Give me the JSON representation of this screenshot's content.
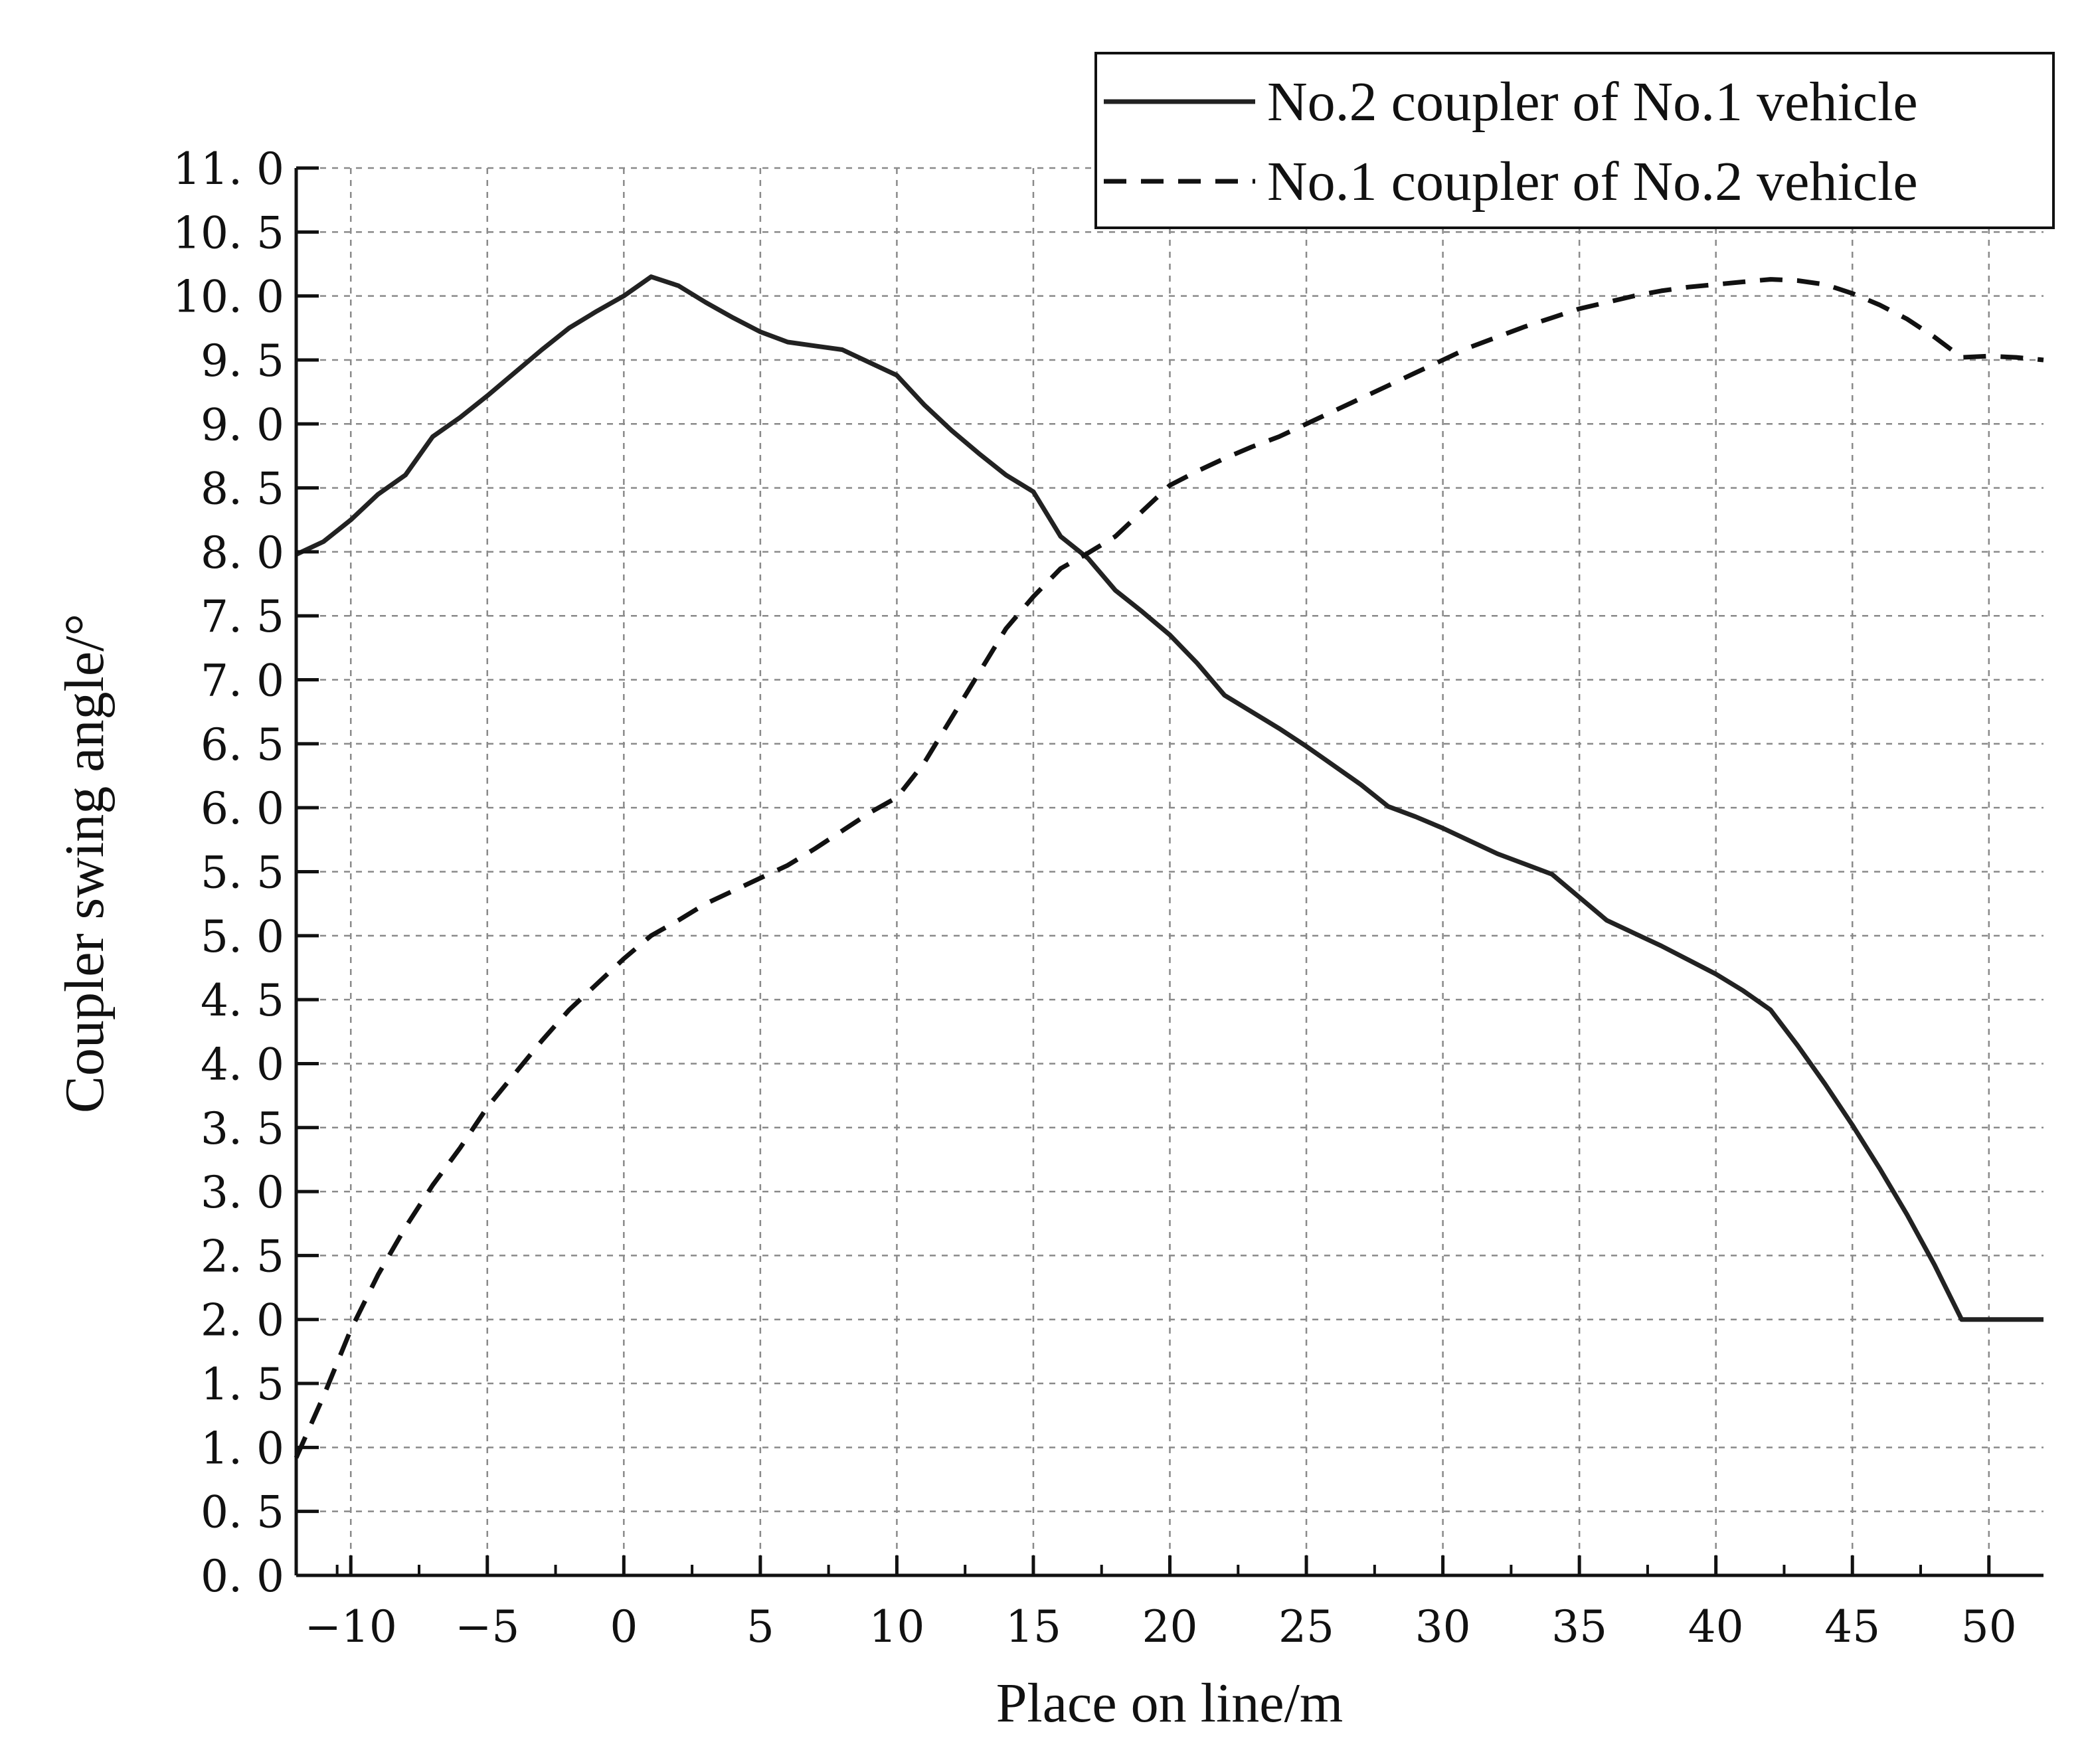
{
  "chart_data": {
    "type": "line",
    "xlabel": "Place on line/m",
    "ylabel": "Coupler swing angle/°",
    "xlim": [
      -12,
      52
    ],
    "ylim": [
      0,
      11
    ],
    "xticks": [
      -10,
      -5,
      0,
      5,
      10,
      15,
      20,
      25,
      30,
      35,
      40,
      45,
      50
    ],
    "xtick_labels": [
      "−10",
      "−5",
      "0",
      "5",
      "10",
      "15",
      "20",
      "25",
      "30",
      "35",
      "40",
      "45",
      "50"
    ],
    "yticks": [
      0,
      0.5,
      1,
      1.5,
      2,
      2.5,
      3,
      3.5,
      4,
      4.5,
      5,
      5.5,
      6,
      6.5,
      7,
      7.5,
      8,
      8.5,
      9,
      9.5,
      10,
      10.5,
      11
    ],
    "ytick_labels": [
      "0. 0",
      "0. 5",
      "1. 0",
      "1. 5",
      "2. 0",
      "2. 5",
      "3. 0",
      "3. 5",
      "4. 0",
      "4. 5",
      "5. 0",
      "5. 5",
      "6. 0",
      "6. 5",
      "7. 0",
      "7. 5",
      "8. 0",
      "8. 5",
      "9. 0",
      "9. 5",
      "10. 0",
      "10. 5",
      "11. 0"
    ],
    "grid": true,
    "legend_position": "top-right",
    "series": [
      {
        "name": "No.2 coupler of No.1 vehicle",
        "style": "solid",
        "color": "#222222",
        "points": [
          [
            -12,
            7.98
          ],
          [
            -11,
            8.08
          ],
          [
            -10,
            8.25
          ],
          [
            -9,
            8.45
          ],
          [
            -8,
            8.6
          ],
          [
            -7,
            8.9
          ],
          [
            -6,
            9.05
          ],
          [
            -5,
            9.22
          ],
          [
            -4,
            9.4
          ],
          [
            -3,
            9.58
          ],
          [
            -2,
            9.75
          ],
          [
            -1,
            9.88
          ],
          [
            0,
            10.0
          ],
          [
            1,
            10.15
          ],
          [
            2,
            10.08
          ],
          [
            3,
            9.95
          ],
          [
            4,
            9.83
          ],
          [
            5,
            9.72
          ],
          [
            6,
            9.64
          ],
          [
            7,
            9.61
          ],
          [
            8,
            9.58
          ],
          [
            9,
            9.48
          ],
          [
            10,
            9.38
          ],
          [
            11,
            9.15
          ],
          [
            12,
            8.95
          ],
          [
            13,
            8.77
          ],
          [
            14,
            8.6
          ],
          [
            15,
            8.47
          ],
          [
            16,
            8.12
          ],
          [
            17,
            7.95
          ],
          [
            18,
            7.7
          ],
          [
            19,
            7.53
          ],
          [
            20,
            7.35
          ],
          [
            21,
            7.13
          ],
          [
            22,
            6.88
          ],
          [
            23,
            6.75
          ],
          [
            24,
            6.62
          ],
          [
            25,
            6.48
          ],
          [
            26,
            6.33
          ],
          [
            27,
            6.18
          ],
          [
            28,
            6.01
          ],
          [
            29,
            5.93
          ],
          [
            30,
            5.84
          ],
          [
            31,
            5.74
          ],
          [
            32,
            5.64
          ],
          [
            33,
            5.56
          ],
          [
            34,
            5.48
          ],
          [
            35,
            5.3
          ],
          [
            36,
            5.12
          ],
          [
            37,
            5.02
          ],
          [
            38,
            4.92
          ],
          [
            39,
            4.81
          ],
          [
            40,
            4.7
          ],
          [
            41,
            4.57
          ],
          [
            42,
            4.42
          ],
          [
            43,
            4.14
          ],
          [
            44,
            3.84
          ],
          [
            45,
            3.52
          ],
          [
            46,
            3.18
          ],
          [
            47,
            2.82
          ],
          [
            48,
            2.43
          ],
          [
            49,
            2.0
          ],
          [
            50,
            2.0
          ],
          [
            51,
            2.0
          ],
          [
            52,
            2.0
          ]
        ]
      },
      {
        "name": "No.1 coupler of No.2 vehicle",
        "style": "dashed",
        "color": "#111111",
        "points": [
          [
            -12,
            0.92
          ],
          [
            -11,
            1.4
          ],
          [
            -10,
            1.92
          ],
          [
            -9,
            2.35
          ],
          [
            -8,
            2.72
          ],
          [
            -7,
            3.05
          ],
          [
            -6,
            3.34
          ],
          [
            -5,
            3.66
          ],
          [
            -4,
            3.92
          ],
          [
            -3,
            4.18
          ],
          [
            -2,
            4.42
          ],
          [
            -1,
            4.62
          ],
          [
            0,
            4.82
          ],
          [
            1,
            5.0
          ],
          [
            2,
            5.12
          ],
          [
            3,
            5.25
          ],
          [
            4,
            5.35
          ],
          [
            5,
            5.45
          ],
          [
            6,
            5.55
          ],
          [
            7,
            5.68
          ],
          [
            8,
            5.82
          ],
          [
            9,
            5.96
          ],
          [
            10,
            6.08
          ],
          [
            11,
            6.35
          ],
          [
            12,
            6.7
          ],
          [
            13,
            7.05
          ],
          [
            14,
            7.4
          ],
          [
            15,
            7.65
          ],
          [
            16,
            7.87
          ],
          [
            17,
            7.99
          ],
          [
            18,
            8.12
          ],
          [
            19,
            8.32
          ],
          [
            20,
            8.52
          ],
          [
            21,
            8.63
          ],
          [
            22,
            8.73
          ],
          [
            23,
            8.82
          ],
          [
            24,
            8.9
          ],
          [
            25,
            9.0
          ],
          [
            26,
            9.1
          ],
          [
            27,
            9.2
          ],
          [
            28,
            9.3
          ],
          [
            29,
            9.4
          ],
          [
            30,
            9.5
          ],
          [
            31,
            9.6
          ],
          [
            32,
            9.68
          ],
          [
            33,
            9.76
          ],
          [
            34,
            9.83
          ],
          [
            35,
            9.9
          ],
          [
            36,
            9.95
          ],
          [
            37,
            10.0
          ],
          [
            38,
            10.04
          ],
          [
            39,
            10.07
          ],
          [
            40,
            10.09
          ],
          [
            41,
            10.11
          ],
          [
            42,
            10.13
          ],
          [
            43,
            10.12
          ],
          [
            44,
            10.09
          ],
          [
            45,
            10.02
          ],
          [
            46,
            9.93
          ],
          [
            47,
            9.82
          ],
          [
            48,
            9.68
          ],
          [
            49,
            9.52
          ],
          [
            50,
            9.53
          ],
          [
            51,
            9.52
          ],
          [
            52,
            9.5
          ]
        ]
      }
    ]
  }
}
